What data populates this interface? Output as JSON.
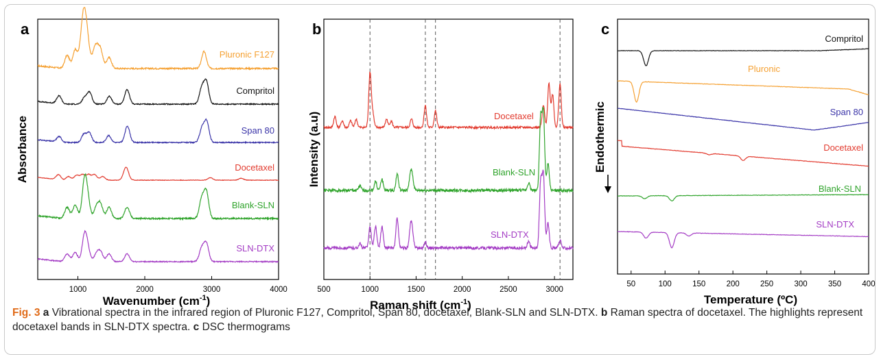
{
  "caption": {
    "fig": "Fig. 3",
    "a_letter": "a",
    "a_text": " Vibrational spectra in the infrared region of Pluronic F127, Compritol, Span 80, docetaxel, Blank-SLN and SLN-DTX. ",
    "b_letter": "b",
    "b_text": " Raman spectra of docetaxel. The highlights represent docetaxel bands in SLN-DTX spectra. ",
    "c_letter": "c",
    "c_text": " DSC thermograms"
  },
  "chart_data": [
    {
      "panel": "a",
      "type": "line",
      "xlabel": "Wavenumber (cm⁻¹)",
      "ylabel": "Absorbance",
      "xlim": [
        400,
        4000
      ],
      "xticks": [
        1000,
        2000,
        3000,
        4000
      ],
      "stacked_offset": true,
      "series": [
        {
          "name": "Pluronic F127",
          "color": "#f5a031",
          "peaks": [
            [
              840,
              0.35
            ],
            [
              960,
              0.5
            ],
            [
              1060,
              0.7
            ],
            [
              1100,
              1.0
            ],
            [
              1145,
              0.55
            ],
            [
              1240,
              0.3
            ],
            [
              1280,
              0.4
            ],
            [
              1340,
              0.45
            ],
            [
              1465,
              0.3
            ],
            [
              2885,
              0.45
            ]
          ]
        },
        {
          "name": "Compritol",
          "color": "#111111",
          "peaks": [
            [
              720,
              0.3
            ],
            [
              1100,
              0.25
            ],
            [
              1175,
              0.45
            ],
            [
              1470,
              0.3
            ],
            [
              1735,
              0.55
            ],
            [
              2850,
              0.6
            ],
            [
              2920,
              0.85
            ]
          ]
        },
        {
          "name": "Span 80",
          "color": "#3a34a8",
          "peaks": [
            [
              720,
              0.2
            ],
            [
              1090,
              0.3
            ],
            [
              1170,
              0.35
            ],
            [
              1460,
              0.25
            ],
            [
              1740,
              0.6
            ],
            [
              2855,
              0.5
            ],
            [
              2925,
              0.75
            ]
          ]
        },
        {
          "name": "Docetaxel",
          "color": "#e23a2e",
          "peaks": [
            [
              710,
              0.4
            ],
            [
              860,
              0.3
            ],
            [
              980,
              0.4
            ],
            [
              1070,
              0.45
            ],
            [
              1160,
              0.45
            ],
            [
              1250,
              0.45
            ],
            [
              1370,
              0.3
            ],
            [
              1710,
              0.6
            ],
            [
              1730,
              0.5
            ],
            [
              2980,
              0.2
            ],
            [
              3440,
              0.15
            ]
          ]
        },
        {
          "name": "Blank-SLN",
          "color": "#2ea32a",
          "peaks": [
            [
              840,
              0.3
            ],
            [
              960,
              0.35
            ],
            [
              1100,
              1.0
            ],
            [
              1150,
              0.4
            ],
            [
              1280,
              0.3
            ],
            [
              1340,
              0.35
            ],
            [
              1465,
              0.3
            ],
            [
              1735,
              0.3
            ],
            [
              2850,
              0.5
            ],
            [
              2920,
              0.7
            ]
          ]
        },
        {
          "name": "SLN-DTX",
          "color": "#a33bc4",
          "peaks": [
            [
              840,
              0.3
            ],
            [
              960,
              0.35
            ],
            [
              1100,
              1.0
            ],
            [
              1150,
              0.4
            ],
            [
              1280,
              0.3
            ],
            [
              1340,
              0.35
            ],
            [
              1465,
              0.3
            ],
            [
              1735,
              0.3
            ],
            [
              2850,
              0.5
            ],
            [
              2920,
              0.7
            ]
          ]
        }
      ]
    },
    {
      "panel": "b",
      "type": "line",
      "xlabel": "Raman shift (cm⁻¹)",
      "ylabel": "Intensity (a.u)",
      "xlim": [
        500,
        3200
      ],
      "xticks": [
        500,
        1000,
        1500,
        2000,
        2500,
        3000
      ],
      "highlight_lines": [
        1000,
        1600,
        1710,
        3060
      ],
      "series": [
        {
          "name": "Docetaxel",
          "color": "#e23a2e",
          "peaks": [
            [
              620,
              0.2
            ],
            [
              700,
              0.12
            ],
            [
              790,
              0.12
            ],
            [
              850,
              0.15
            ],
            [
              1000,
              1.0
            ],
            [
              1030,
              0.25
            ],
            [
              1180,
              0.15
            ],
            [
              1230,
              0.12
            ],
            [
              1450,
              0.15
            ],
            [
              1600,
              0.4
            ],
            [
              1710,
              0.3
            ],
            [
              2880,
              0.4
            ],
            [
              2940,
              0.8
            ],
            [
              2980,
              0.6
            ],
            [
              3060,
              0.8
            ]
          ]
        },
        {
          "name": "Blank-SLN",
          "color": "#2ea32a",
          "peaks": [
            [
              890,
              0.06
            ],
            [
              1060,
              0.12
            ],
            [
              1130,
              0.15
            ],
            [
              1295,
              0.22
            ],
            [
              1440,
              0.22
            ],
            [
              1460,
              0.15
            ],
            [
              2720,
              0.1
            ],
            [
              2850,
              0.95
            ],
            [
              2880,
              1.0
            ],
            [
              2930,
              0.35
            ]
          ]
        },
        {
          "name": "SLN-DTX",
          "color": "#a33bc4",
          "peaks": [
            [
              890,
              0.06
            ],
            [
              1000,
              0.3
            ],
            [
              1060,
              0.3
            ],
            [
              1130,
              0.3
            ],
            [
              1295,
              0.42
            ],
            [
              1440,
              0.28
            ],
            [
              1460,
              0.2
            ],
            [
              1600,
              0.08
            ],
            [
              2720,
              0.1
            ],
            [
              2850,
              0.9
            ],
            [
              2880,
              1.0
            ],
            [
              2930,
              0.35
            ],
            [
              3060,
              0.1
            ]
          ]
        }
      ]
    },
    {
      "panel": "c",
      "type": "line",
      "xlabel": "Temperature (ºC)",
      "ylabel": "Endothermic",
      "xlim": [
        30,
        400
      ],
      "xticks": [
        50,
        100,
        150,
        200,
        250,
        300,
        350,
        400
      ],
      "series": [
        {
          "name": "Compritol",
          "color": "#111111",
          "events": [
            [
              72,
              1.0
            ]
          ]
        },
        {
          "name": "Pluronic",
          "color": "#f5a031",
          "events": [
            [
              58,
              1.0
            ]
          ]
        },
        {
          "name": "Span 80",
          "color": "#3a34a8",
          "events": []
        },
        {
          "name": "Docetaxel",
          "color": "#e23a2e",
          "events": [
            [
              165,
              0.15
            ],
            [
              215,
              0.45
            ]
          ]
        },
        {
          "name": "Blank-SLN",
          "color": "#2ea32a",
          "events": [
            [
              70,
              0.3
            ],
            [
              110,
              0.55
            ]
          ]
        },
        {
          "name": "SLN-DTX",
          "color": "#a33bc4",
          "events": [
            [
              72,
              0.4
            ],
            [
              110,
              1.0
            ],
            [
              135,
              0.2
            ]
          ]
        }
      ]
    }
  ]
}
